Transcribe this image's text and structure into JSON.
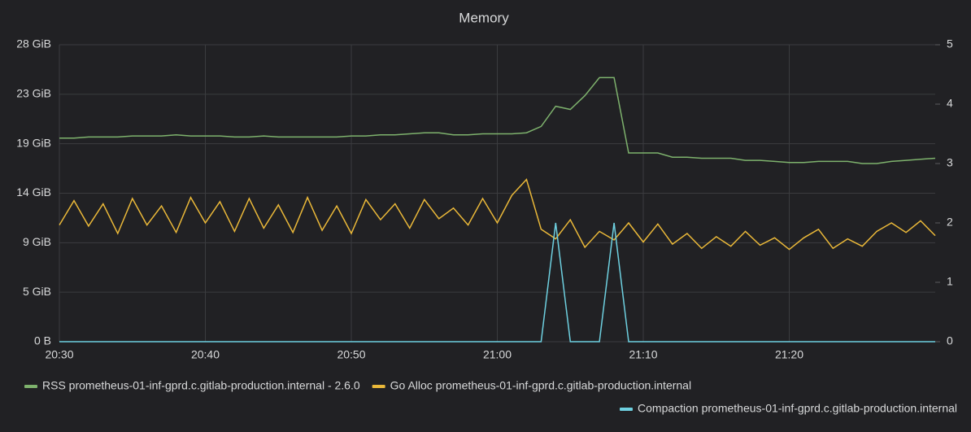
{
  "chart_data": {
    "type": "line",
    "title": "Memory",
    "categories": [
      "20:30",
      null,
      null,
      null,
      null,
      null,
      null,
      null,
      null,
      null,
      "20:40",
      null,
      null,
      null,
      null,
      null,
      null,
      null,
      null,
      null,
      "20:50",
      null,
      null,
      null,
      null,
      null,
      null,
      null,
      null,
      null,
      "21:00",
      null,
      null,
      null,
      null,
      null,
      null,
      null,
      null,
      null,
      "21:10",
      null,
      null,
      null,
      null,
      null,
      null,
      null,
      null,
      null,
      "21:20",
      null,
      null,
      null,
      null,
      null,
      null,
      null,
      null,
      null,
      null
    ],
    "series": [
      {
        "name": "RSS prometheus-01-inf-gprd.c.gitlab-production.internal - 2.6.0",
        "color": "#7eb26d",
        "values": [
          19.2,
          19.2,
          19.3,
          19.3,
          19.3,
          19.4,
          19.4,
          19.4,
          19.5,
          19.4,
          19.4,
          19.4,
          19.3,
          19.3,
          19.4,
          19.3,
          19.3,
          19.3,
          19.3,
          19.3,
          19.4,
          19.4,
          19.5,
          19.5,
          19.6,
          19.7,
          19.7,
          19.5,
          19.5,
          19.6,
          19.6,
          19.6,
          19.7,
          20.3,
          22.2,
          21.9,
          23.2,
          24.9,
          24.9,
          17.8,
          17.8,
          17.8,
          17.4,
          17.4,
          17.3,
          17.3,
          17.3,
          17.1,
          17.1,
          17.0,
          16.9,
          16.9,
          17.0,
          17.0,
          17.0,
          16.8,
          16.8,
          17.0,
          17.1,
          17.2,
          17.3
        ]
      },
      {
        "name": "Go Alloc prometheus-01-inf-gprd.c.gitlab-production.internal",
        "color": "#eab839",
        "values": [
          11.0,
          13.3,
          10.9,
          13.0,
          10.2,
          13.5,
          11.0,
          12.8,
          10.3,
          13.6,
          11.2,
          13.2,
          10.4,
          13.5,
          10.7,
          12.9,
          10.3,
          13.6,
          10.5,
          12.8,
          10.2,
          13.4,
          11.5,
          13.0,
          10.7,
          13.4,
          11.6,
          12.6,
          11.0,
          13.5,
          11.2,
          13.8,
          15.3,
          10.6,
          9.7,
          11.5,
          8.9,
          10.4,
          9.6,
          11.2,
          9.4,
          11.1,
          9.2,
          10.2,
          8.8,
          9.9,
          9.0,
          10.4,
          9.1,
          9.8,
          8.7,
          9.8,
          10.6,
          8.8,
          9.7,
          9.0,
          10.4,
          11.2,
          10.3,
          11.4,
          10.0
        ]
      },
      {
        "name": "Compaction prometheus-01-inf-gprd.c.gitlab-production.internal",
        "color": "#6ed0e0",
        "axis": "y2",
        "values": [
          0,
          0,
          0,
          0,
          0,
          0,
          0,
          0,
          0,
          0,
          0,
          0,
          0,
          0,
          0,
          0,
          0,
          0,
          0,
          0,
          0,
          0,
          0,
          0,
          0,
          0,
          0,
          0,
          0,
          0,
          0,
          0,
          0,
          0,
          2,
          0,
          0,
          0,
          2,
          0,
          0,
          0,
          0,
          0,
          0,
          0,
          0,
          0,
          0,
          0,
          0,
          0,
          0,
          0,
          0,
          0,
          0,
          0,
          0,
          0,
          0
        ]
      }
    ],
    "ylim": [
      0,
      28
    ],
    "yticks": [
      {
        "value": 0,
        "label": "0 B"
      },
      {
        "value": 4.67,
        "label": "5 GiB"
      },
      {
        "value": 9.33,
        "label": "9 GiB"
      },
      {
        "value": 14,
        "label": "14 GiB"
      },
      {
        "value": 18.67,
        "label": "19 GiB"
      },
      {
        "value": 23.33,
        "label": "23 GiB"
      },
      {
        "value": 28,
        "label": "28 GiB"
      }
    ],
    "y2lim": [
      0,
      5
    ],
    "y2ticks": [
      0,
      1,
      2,
      3,
      4,
      5
    ],
    "grid": true
  }
}
